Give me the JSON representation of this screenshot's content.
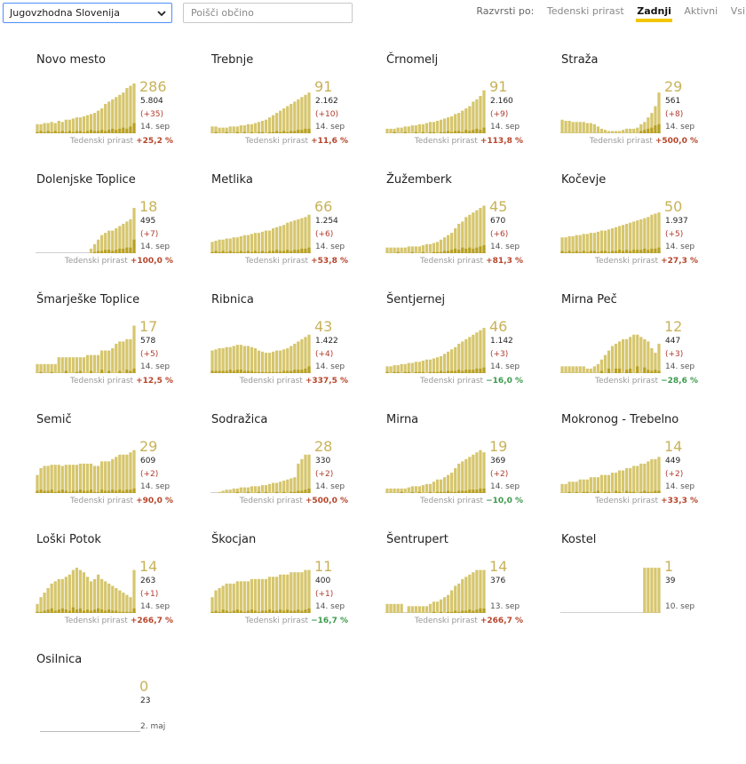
{
  "header": {
    "region": "Jugovzhodna Slovenija",
    "search_placeholder": "Poišči občino",
    "sort_label": "Razvrsti po:",
    "sort_options": [
      {
        "label": "Tedenski prirast",
        "active": false
      },
      {
        "label": "Zadnji",
        "active": true
      },
      {
        "label": "Aktivni",
        "active": false
      },
      {
        "label": "Vsi",
        "active": false
      }
    ]
  },
  "weekly_label": "Tedenski prirast",
  "colors": {
    "bar": "#d6c66d",
    "bar_dark": "#b8a021",
    "up": "#b5452b",
    "down": "#3c9a4d",
    "big_number": "#c8b25a"
  },
  "municipalities": [
    {
      "name": "Novo mesto",
      "latest": "286",
      "total": "5.804",
      "increase": "(+35)",
      "date": "14. sep",
      "weekly": "+25,2 %",
      "trend": "up",
      "bars": [
        8,
        8,
        9,
        9,
        10,
        9,
        11,
        10,
        12,
        12,
        13,
        14,
        14,
        15,
        16,
        17,
        18,
        20,
        22,
        26,
        28,
        30,
        32,
        34,
        36,
        40,
        42,
        44
      ],
      "dark": [
        1,
        2,
        1,
        2,
        1,
        2,
        1,
        2,
        1,
        2,
        1,
        2,
        2,
        1,
        2,
        3,
        2,
        2,
        3,
        2,
        3,
        4,
        3,
        4,
        5,
        4,
        6,
        9
      ]
    },
    {
      "name": "Trebnje",
      "latest": "91",
      "total": "2.162",
      "increase": "(+10)",
      "date": "14. sep",
      "weekly": "+11,6 %",
      "trend": "up",
      "bars": [
        6,
        6,
        5,
        5,
        5,
        6,
        6,
        6,
        7,
        7,
        8,
        8,
        9,
        10,
        11,
        12,
        14,
        16,
        18,
        20,
        22,
        24,
        26,
        28,
        30,
        32,
        34,
        36
      ],
      "dark": [
        0,
        1,
        0,
        0,
        1,
        0,
        0,
        1,
        0,
        1,
        0,
        1,
        0,
        1,
        1,
        0,
        1,
        1,
        2,
        1,
        2,
        1,
        2,
        2,
        3,
        3,
        4,
        4
      ]
    },
    {
      "name": "Črnomelj",
      "latest": "91",
      "total": "2.160",
      "increase": "(+9)",
      "date": "14. sep",
      "weekly": "+113,8 %",
      "trend": "up",
      "bars": [
        4,
        4,
        4,
        5,
        5,
        6,
        6,
        7,
        7,
        8,
        8,
        9,
        10,
        10,
        11,
        12,
        13,
        14,
        15,
        17,
        18,
        20,
        22,
        24,
        28,
        30,
        33,
        38
      ],
      "dark": [
        0,
        0,
        1,
        0,
        0,
        1,
        0,
        0,
        1,
        0,
        1,
        0,
        1,
        1,
        0,
        1,
        1,
        2,
        1,
        2,
        2,
        1,
        3,
        2,
        3,
        4,
        3,
        5
      ]
    },
    {
      "name": "Straža",
      "latest": "29",
      "total": "561",
      "increase": "(+8)",
      "date": "14. sep",
      "weekly": "+500,0 %",
      "trend": "up",
      "bars": [
        12,
        11,
        11,
        10,
        10,
        10,
        10,
        9,
        9,
        8,
        6,
        4,
        3,
        2,
        2,
        2,
        2,
        3,
        4,
        4,
        4,
        5,
        8,
        10,
        14,
        18,
        24,
        36
      ],
      "dark": [
        0,
        0,
        0,
        0,
        0,
        0,
        0,
        0,
        0,
        0,
        0,
        0,
        0,
        0,
        0,
        0,
        0,
        0,
        0,
        0,
        0,
        0,
        2,
        3,
        4,
        5,
        7,
        8
      ]
    },
    {
      "name": "Dolenjske Toplice",
      "latest": "18",
      "total": "495",
      "increase": "(+7)",
      "date": "14. sep",
      "weekly": "+100,0 %",
      "trend": "up",
      "bars": [
        0,
        0,
        0,
        0,
        0,
        0,
        0,
        0,
        0,
        0,
        0,
        0,
        0,
        0,
        0,
        4,
        8,
        12,
        16,
        18,
        20,
        20,
        22,
        24,
        26,
        28,
        30,
        40
      ],
      "dark": [
        0,
        0,
        0,
        0,
        0,
        0,
        0,
        0,
        0,
        0,
        0,
        0,
        0,
        0,
        0,
        0,
        1,
        2,
        2,
        3,
        3,
        2,
        3,
        4,
        4,
        5,
        5,
        12
      ]
    },
    {
      "name": "Metlika",
      "latest": "66",
      "total": "1.254",
      "increase": "(+6)",
      "date": "14. sep",
      "weekly": "+53,8 %",
      "trend": "up",
      "bars": [
        10,
        11,
        12,
        12,
        13,
        13,
        14,
        14,
        15,
        16,
        16,
        17,
        18,
        18,
        19,
        20,
        20,
        22,
        23,
        24,
        25,
        27,
        28,
        29,
        30,
        31,
        32,
        34
      ],
      "dark": [
        1,
        2,
        1,
        2,
        1,
        2,
        1,
        1,
        2,
        1,
        2,
        1,
        2,
        1,
        2,
        1,
        2,
        2,
        3,
        2,
        2,
        3,
        2,
        3,
        3,
        4,
        4,
        5
      ]
    },
    {
      "name": "Žužemberk",
      "latest": "45",
      "total": "670",
      "increase": "(+6)",
      "date": "14. sep",
      "weekly": "+81,3 %",
      "trend": "up",
      "bars": [
        5,
        5,
        5,
        5,
        5,
        5,
        6,
        6,
        6,
        6,
        7,
        8,
        8,
        9,
        10,
        12,
        14,
        16,
        18,
        22,
        26,
        28,
        32,
        34,
        36,
        38,
        40,
        42
      ],
      "dark": [
        0,
        0,
        0,
        1,
        0,
        0,
        0,
        1,
        0,
        0,
        1,
        0,
        0,
        1,
        1,
        1,
        2,
        2,
        3,
        4,
        3,
        5,
        4,
        5,
        4,
        5,
        6,
        7
      ]
    },
    {
      "name": "Kočevje",
      "latest": "50",
      "total": "1.937",
      "increase": "(+5)",
      "date": "14. sep",
      "weekly": "+27,3 %",
      "trend": "up",
      "bars": [
        14,
        14,
        15,
        15,
        16,
        16,
        17,
        17,
        18,
        18,
        19,
        20,
        20,
        21,
        22,
        23,
        24,
        25,
        26,
        27,
        28,
        29,
        30,
        31,
        32,
        34,
        35,
        36
      ],
      "dark": [
        2,
        1,
        2,
        1,
        2,
        1,
        2,
        1,
        2,
        2,
        1,
        2,
        2,
        1,
        2,
        2,
        3,
        2,
        3,
        2,
        3,
        3,
        3,
        4,
        3,
        4,
        4,
        5
      ]
    },
    {
      "name": "Šmarješke Toplice",
      "latest": "17",
      "total": "578",
      "increase": "(+5)",
      "date": "14. sep",
      "weekly": "+12,5 %",
      "trend": "up",
      "bars": [
        8,
        8,
        8,
        8,
        8,
        8,
        14,
        14,
        14,
        14,
        14,
        14,
        14,
        14,
        16,
        16,
        16,
        16,
        20,
        20,
        20,
        22,
        26,
        28,
        28,
        30,
        30,
        42
      ],
      "dark": [
        0,
        1,
        0,
        0,
        1,
        0,
        0,
        0,
        2,
        0,
        0,
        1,
        2,
        0,
        0,
        2,
        0,
        0,
        3,
        0,
        2,
        0,
        0,
        2,
        0,
        3,
        2,
        4
      ]
    },
    {
      "name": "Ribnica",
      "latest": "43",
      "total": "1.422",
      "increase": "(+4)",
      "date": "14. sep",
      "weekly": "+337,5 %",
      "trend": "up",
      "bars": [
        20,
        21,
        22,
        22,
        23,
        23,
        24,
        25,
        25,
        24,
        24,
        23,
        22,
        20,
        19,
        18,
        18,
        19,
        20,
        20,
        21,
        22,
        24,
        26,
        28,
        30,
        32,
        34
      ],
      "dark": [
        2,
        2,
        2,
        2,
        2,
        3,
        2,
        3,
        3,
        2,
        2,
        2,
        1,
        1,
        1,
        1,
        1,
        1,
        1,
        1,
        2,
        2,
        2,
        3,
        3,
        3,
        4,
        6
      ]
    },
    {
      "name": "Šentjernej",
      "latest": "46",
      "total": "1.142",
      "increase": "(+3)",
      "date": "14. sep",
      "weekly": "−16,0 %",
      "trend": "down",
      "bars": [
        6,
        6,
        7,
        7,
        8,
        8,
        9,
        9,
        10,
        10,
        11,
        12,
        12,
        13,
        14,
        15,
        17,
        19,
        21,
        23,
        26,
        28,
        30,
        32,
        34,
        36,
        38,
        40
      ],
      "dark": [
        1,
        0,
        1,
        1,
        0,
        1,
        1,
        0,
        1,
        1,
        1,
        0,
        1,
        1,
        1,
        2,
        1,
        2,
        2,
        2,
        3,
        2,
        3,
        3,
        3,
        4,
        4,
        5
      ]
    },
    {
      "name": "Mirna Peč",
      "latest": "12",
      "total": "447",
      "increase": "(+3)",
      "date": "14. sep",
      "weekly": "−28,6 %",
      "trend": "down",
      "bars": [
        6,
        6,
        6,
        6,
        6,
        6,
        6,
        4,
        4,
        6,
        8,
        12,
        16,
        20,
        24,
        26,
        28,
        30,
        30,
        32,
        34,
        34,
        32,
        30,
        28,
        22,
        18,
        26
      ],
      "dark": [
        0,
        0,
        0,
        0,
        0,
        0,
        0,
        0,
        0,
        0,
        0,
        2,
        0,
        4,
        0,
        4,
        4,
        0,
        3,
        4,
        0,
        6,
        0,
        5,
        3,
        2,
        3,
        2
      ]
    },
    {
      "name": "Semič",
      "latest": "29",
      "total": "609",
      "increase": "(+2)",
      "date": "14. sep",
      "weekly": "+90,0 %",
      "trend": "up",
      "bars": [
        16,
        22,
        24,
        24,
        25,
        25,
        25,
        24,
        25,
        25,
        25,
        25,
        26,
        26,
        26,
        26,
        24,
        24,
        28,
        28,
        28,
        30,
        32,
        34,
        34,
        34,
        36,
        38
      ],
      "dark": [
        2,
        3,
        2,
        2,
        3,
        1,
        2,
        3,
        2,
        1,
        2,
        2,
        3,
        2,
        2,
        3,
        1,
        1,
        3,
        2,
        2,
        3,
        2,
        3,
        2,
        3,
        3,
        4
      ]
    },
    {
      "name": "Sodražica",
      "latest": "28",
      "total": "330",
      "increase": "(+2)",
      "date": "14. sep",
      "weekly": "+500,0 %",
      "trend": "up",
      "bars": [
        0,
        0,
        1,
        2,
        3,
        3,
        4,
        4,
        5,
        5,
        5,
        6,
        6,
        6,
        7,
        7,
        8,
        9,
        9,
        10,
        11,
        12,
        13,
        14,
        26,
        30,
        34,
        34
      ],
      "dark": [
        0,
        0,
        0,
        0,
        0,
        0,
        0,
        1,
        0,
        0,
        1,
        0,
        0,
        1,
        0,
        1,
        0,
        0,
        1,
        0,
        1,
        0,
        1,
        1,
        2,
        2,
        3,
        4
      ]
    },
    {
      "name": "Mirna",
      "latest": "19",
      "total": "369",
      "increase": "(+2)",
      "date": "14. sep",
      "weekly": "−10,0 %",
      "trend": "down",
      "bars": [
        4,
        4,
        4,
        4,
        4,
        4,
        5,
        6,
        6,
        6,
        7,
        8,
        8,
        10,
        12,
        12,
        14,
        16,
        18,
        22,
        26,
        28,
        30,
        32,
        34,
        36,
        38,
        36
      ],
      "dark": [
        0,
        0,
        0,
        0,
        1,
        0,
        0,
        1,
        0,
        1,
        0,
        0,
        1,
        0,
        1,
        1,
        1,
        2,
        1,
        1,
        2,
        2,
        2,
        3,
        3,
        3,
        4,
        4
      ]
    },
    {
      "name": "Mokronog - Trebelno",
      "latest": "14",
      "total": "449",
      "increase": "(+2)",
      "date": "14. sep",
      "weekly": "+33,3 %",
      "trend": "up",
      "bars": [
        8,
        8,
        10,
        10,
        10,
        12,
        12,
        12,
        14,
        14,
        14,
        16,
        16,
        16,
        18,
        18,
        20,
        20,
        22,
        22,
        24,
        24,
        26,
        26,
        28,
        30,
        30,
        32
      ],
      "dark": [
        0,
        0,
        1,
        0,
        1,
        0,
        1,
        1,
        0,
        1,
        2,
        0,
        1,
        1,
        0,
        2,
        1,
        0,
        2,
        1,
        1,
        0,
        1,
        2,
        1,
        1,
        2,
        2
      ]
    },
    {
      "name": "Loški Potok",
      "latest": "14",
      "total": "263",
      "increase": "(+1)",
      "date": "14. sep",
      "weekly": "+266,7 %",
      "trend": "up",
      "bars": [
        8,
        14,
        18,
        22,
        26,
        28,
        30,
        30,
        32,
        34,
        38,
        40,
        38,
        36,
        32,
        28,
        30,
        34,
        30,
        28,
        26,
        24,
        22,
        20,
        18,
        16,
        14,
        38
      ],
      "dark": [
        1,
        1,
        2,
        3,
        4,
        2,
        3,
        4,
        3,
        2,
        5,
        3,
        4,
        2,
        3,
        2,
        3,
        4,
        3,
        2,
        3,
        2,
        2,
        1,
        1,
        1,
        1,
        4
      ]
    },
    {
      "name": "Škocjan",
      "latest": "11",
      "total": "400",
      "increase": "(+1)",
      "date": "14. sep",
      "weekly": "−16,7 %",
      "trend": "down",
      "bars": [
        14,
        20,
        22,
        24,
        26,
        26,
        26,
        28,
        28,
        28,
        28,
        30,
        30,
        30,
        30,
        30,
        32,
        32,
        32,
        34,
        34,
        34,
        36,
        36,
        36,
        36,
        38,
        38
      ],
      "dark": [
        1,
        2,
        1,
        3,
        2,
        1,
        2,
        3,
        2,
        1,
        2,
        3,
        2,
        1,
        2,
        2,
        3,
        2,
        2,
        3,
        2,
        3,
        2,
        2,
        3,
        2,
        3,
        4
      ]
    },
    {
      "name": "Šentrupert",
      "latest": "14",
      "total": "376",
      "increase": "",
      "date": "13. sep",
      "weekly": "+266,7 %",
      "trend": "up",
      "bars": [
        8,
        8,
        8,
        8,
        8,
        0,
        6,
        6,
        6,
        6,
        6,
        6,
        8,
        10,
        10,
        12,
        14,
        16,
        20,
        24,
        26,
        30,
        32,
        34,
        36,
        38,
        38,
        38
      ],
      "dark": [
        0,
        0,
        0,
        0,
        0,
        0,
        0,
        0,
        0,
        0,
        0,
        0,
        0,
        1,
        0,
        1,
        0,
        1,
        1,
        2,
        1,
        2,
        2,
        3,
        2,
        3,
        4,
        4
      ]
    },
    {
      "name": "Kostel",
      "latest": "1",
      "total": "39",
      "increase": "",
      "date": "10. sep",
      "weekly": "",
      "trend": "",
      "bars": [
        0,
        0,
        0,
        0,
        0,
        0,
        0,
        0,
        0,
        0,
        0,
        0,
        0,
        0,
        0,
        0,
        0,
        0,
        0,
        0,
        0,
        0,
        0,
        40,
        40,
        40,
        40,
        40
      ],
      "dark": [
        0,
        0,
        0,
        0,
        0,
        0,
        0,
        0,
        0,
        0,
        0,
        0,
        0,
        0,
        0,
        0,
        0,
        0,
        0,
        0,
        0,
        0,
        0,
        0,
        0,
        0,
        0,
        0
      ]
    },
    {
      "name": "Osilnica",
      "latest": "0",
      "total": "23",
      "increase": "",
      "date": "2. maj",
      "weekly": "",
      "trend": "",
      "bars": [],
      "dark": []
    }
  ]
}
